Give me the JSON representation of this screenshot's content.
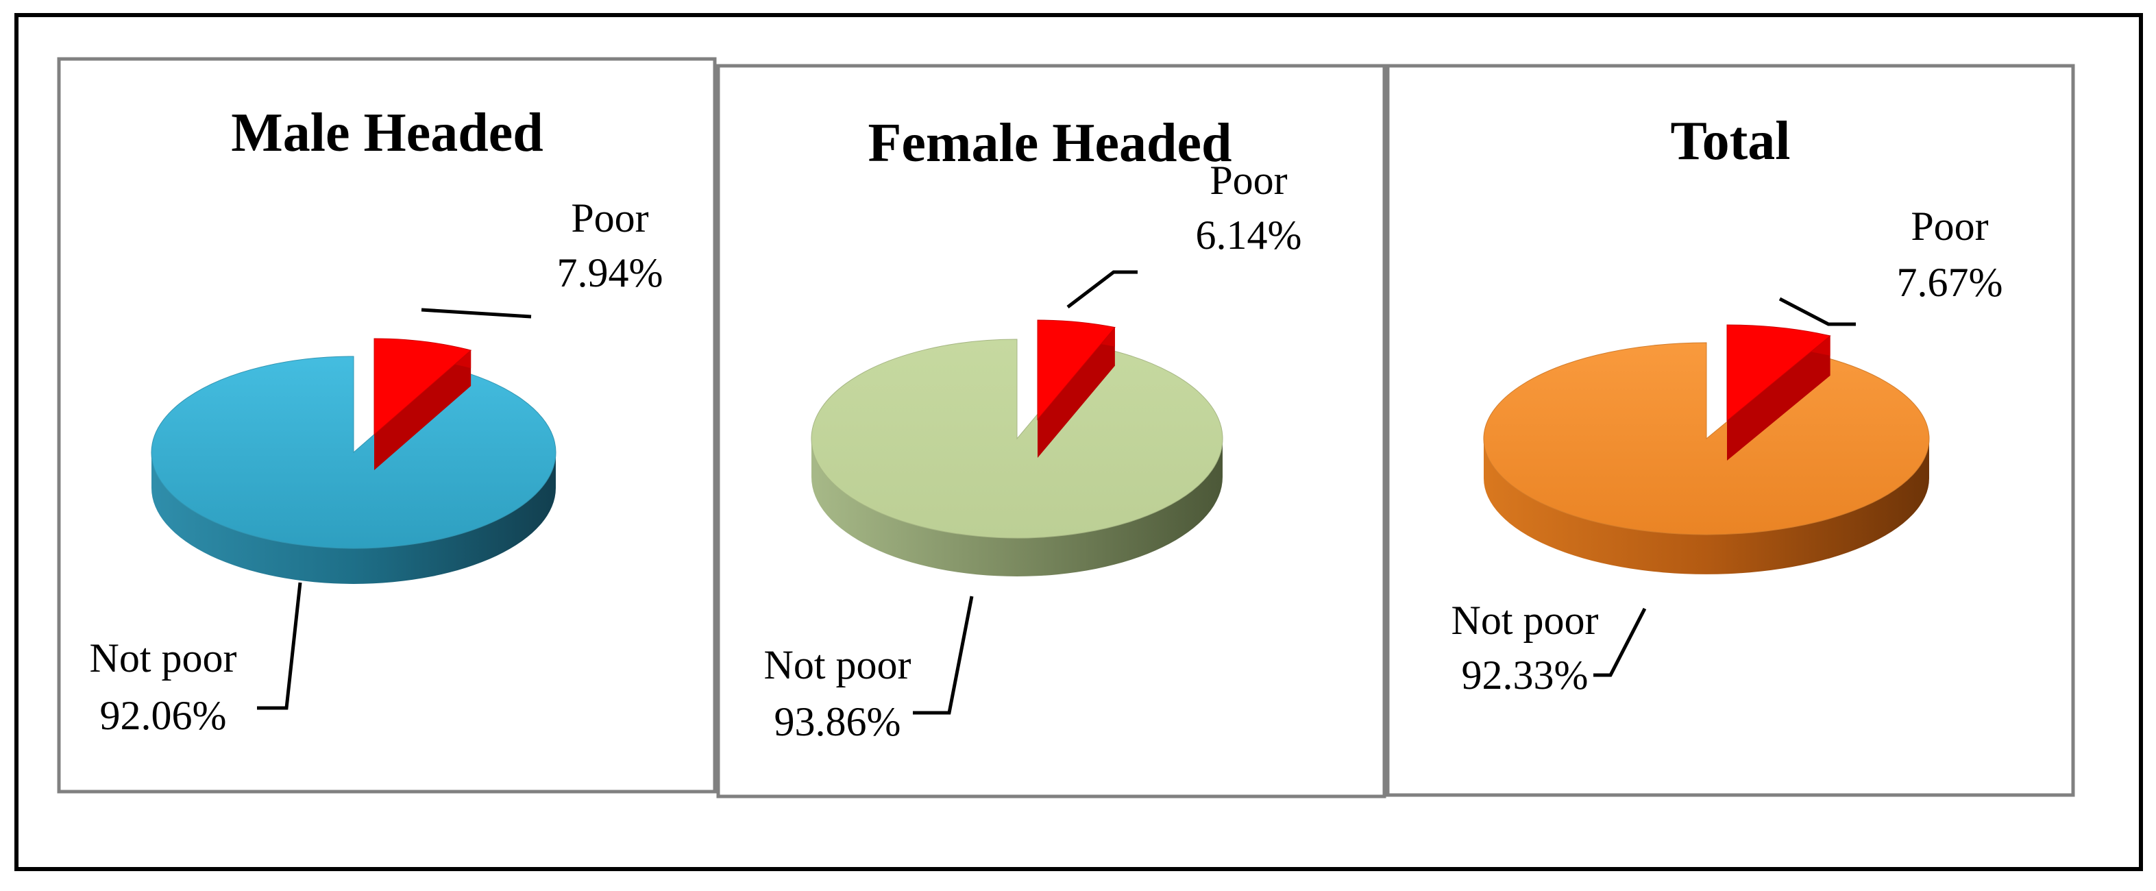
{
  "chart_data": [
    {
      "type": "pie",
      "title": "Male Headed",
      "categories": [
        "Poor",
        "Not poor"
      ],
      "values": [
        7.94,
        92.06
      ],
      "value_labels": [
        "7.94%",
        "92.06%"
      ],
      "colors": {
        "Poor": "#ff0000",
        "Not poor": "#3bb1d3"
      },
      "exploded": "Poor",
      "style": "3d"
    },
    {
      "type": "pie",
      "title": "Female Headed",
      "categories": [
        "Poor",
        "Not poor"
      ],
      "values": [
        6.14,
        93.86
      ],
      "value_labels": [
        "6.14%",
        "93.86%"
      ],
      "colors": {
        "Poor": "#ff0000",
        "Not poor": "#c3d69b"
      },
      "exploded": "Poor",
      "style": "3d"
    },
    {
      "type": "pie",
      "title": "Total",
      "categories": [
        "Poor",
        "Not poor"
      ],
      "values": [
        7.67,
        92.33
      ],
      "value_labels": [
        "7.67%",
        "92.33%"
      ],
      "colors": {
        "Poor": "#ff0000",
        "Not poor": "#f79232"
      },
      "exploded": "Poor",
      "style": "3d"
    }
  ]
}
